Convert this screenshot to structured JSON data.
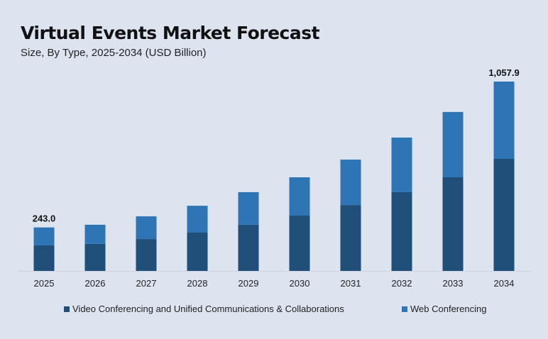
{
  "chart_data": {
    "type": "bar",
    "stacked": true,
    "title": "Virtual Events Market Forecast",
    "subtitle": "Size, By Type, 2025-2034 (USD Billion)",
    "categories": [
      "2025",
      "2026",
      "2027",
      "2028",
      "2029",
      "2030",
      "2031",
      "2032",
      "2033",
      "2034"
    ],
    "series": [
      {
        "name": "Video Conferencing and Unified Communications & Collaborations",
        "color": "#1f4e79",
        "values": [
          143,
          151,
          178,
          214,
          258,
          309,
          368,
          440,
          523,
          626
        ]
      },
      {
        "name": "Web Conferencing",
        "color": "#2e75b6",
        "values": [
          100,
          107,
          127,
          150,
          182,
          214,
          254,
          305,
          365,
          431.9
        ]
      }
    ],
    "data_labels": [
      {
        "category": "2025",
        "text": "243.0"
      },
      {
        "category": "2034",
        "text": "1,057.9"
      }
    ],
    "ylim": [
      0,
      1057.9
    ],
    "grid": false,
    "legend": "bottom"
  }
}
